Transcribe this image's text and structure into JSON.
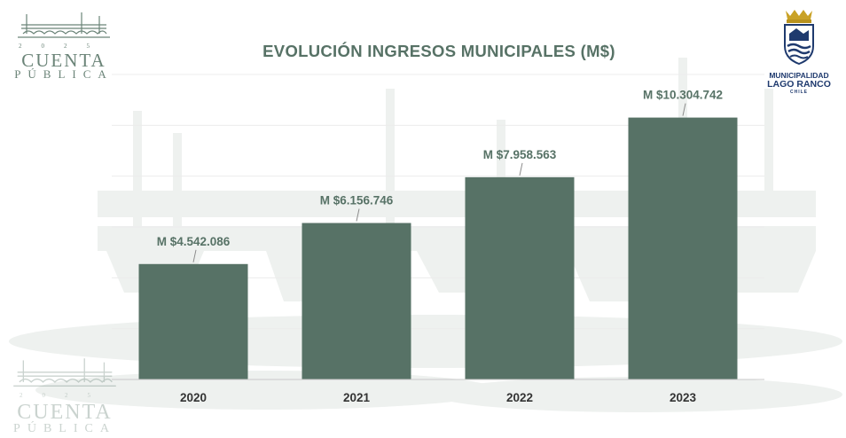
{
  "logo_left": {
    "year_left": "20",
    "year_right": "25",
    "main": "CUENTA",
    "sub": "PÚBLICA"
  },
  "logo_right": {
    "line1": "MUNICIPALIDAD",
    "line2": "LAGO RANCO",
    "line3": "CHILE"
  },
  "chart_data": {
    "type": "bar",
    "title": "EVOLUCIÓN INGRESOS MUNICIPALES (M$)",
    "xlabel": "",
    "ylabel": "",
    "categories": [
      "2020",
      "2021",
      "2022",
      "2023"
    ],
    "values": [
      4542086,
      6156746,
      7958563,
      10304742
    ],
    "data_labels": [
      "M $4.542.086",
      "M $6.156.746",
      "M $7.958.563",
      "M $10.304.742"
    ],
    "ylim": [
      0,
      12000000
    ],
    "grid": true,
    "legend": "none",
    "bar_color": "#577266"
  }
}
